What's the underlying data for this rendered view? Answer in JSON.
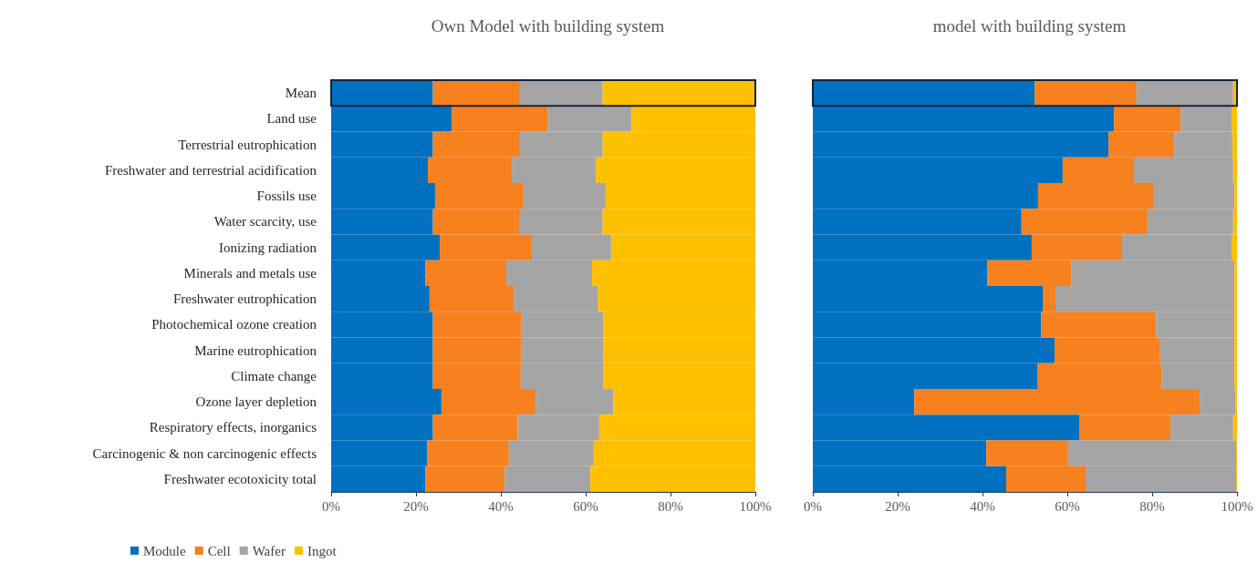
{
  "chart_data": [
    {
      "type": "bar",
      "title": "Own Model with building system",
      "orientation": "horizontal",
      "stacked": true,
      "legend": "bottom left",
      "grid": false,
      "categories": [
        "Mean",
        "Land use",
        "Terrestrial eutrophication",
        "Freshwater and terrestrial acidification",
        "Fossils use",
        "Water scarcity, use",
        "Ionizing radiation",
        "Minerals and metals use",
        "Freshwater eutrophication",
        "Photochemical ozone creation",
        "Marine eutrophication",
        "Climate change",
        "Ozone layer depletion",
        "Respiratory effects, inorganics",
        "Carcinogenic & non carcinogenic effects",
        "Freshwater ecotoxicity total"
      ],
      "xlim": [
        0,
        100
      ],
      "xticks": [
        {
          "value": 0,
          "label": "0%"
        },
        {
          "value": 20,
          "label": "20%"
        },
        {
          "value": 40,
          "label": "40%"
        },
        {
          "value": 60,
          "label": "60%"
        },
        {
          "value": 80,
          "label": "80%"
        },
        {
          "value": 100,
          "label": "100%"
        }
      ],
      "series": [
        {
          "name": "Module",
          "color": "#0070c0",
          "values": [
            24,
            28.4,
            24,
            22.8,
            24.5,
            24,
            25.6,
            22.2,
            23.2,
            24,
            24,
            24,
            26,
            24,
            22.6,
            22.2
          ]
        },
        {
          "name": "Cell",
          "color": "#f7801f",
          "values": [
            20.5,
            22.6,
            20.5,
            19.8,
            20.9,
            20.5,
            21.7,
            19.1,
            19.8,
            20.9,
            20.9,
            20.7,
            22.2,
            20,
            19.3,
            18.7
          ]
        },
        {
          "name": "Wafer",
          "color": "#a5a5a5",
          "values": [
            19.5,
            19.8,
            19.5,
            19.8,
            19.3,
            19.5,
            18.7,
            20.2,
            19.8,
            19.2,
            19.2,
            19.4,
            18.3,
            19.2,
            20,
            20.2
          ]
        },
        {
          "name": "Ingot",
          "color": "#ffc000",
          "values": [
            36,
            29.2,
            36,
            37.6,
            35.3,
            36,
            34,
            38.5,
            37.2,
            35.9,
            35.9,
            35.9,
            33.5,
            36.8,
            38.1,
            38.9
          ]
        }
      ]
    },
    {
      "type": "bar",
      "title": "model with building system",
      "orientation": "horizontal",
      "stacked": true,
      "legend": false,
      "grid": false,
      "tick_labels": "x",
      "categories": [
        null,
        null,
        null,
        null,
        null,
        null,
        null,
        null,
        null,
        null,
        null,
        null,
        null,
        null,
        null,
        null
      ],
      "xlim": [
        0,
        100
      ],
      "xticks": [
        {
          "value": 0,
          "label": "0%"
        },
        {
          "value": 20,
          "label": "20%"
        },
        {
          "value": 40,
          "label": "40%"
        },
        {
          "value": 60,
          "label": "60%"
        },
        {
          "value": 80,
          "label": "80%"
        },
        {
          "value": 100,
          "label": "100%"
        }
      ],
      "series": [
        {
          "color": "#0070c0",
          "values": [
            52.3,
            71,
            69.7,
            58.9,
            53.1,
            49.2,
            51.6,
            41.1,
            54.2,
            53.8,
            57,
            52.9,
            23.9,
            62.8,
            40.9,
            45.6
          ]
        },
        {
          "color": "#f7801f",
          "values": [
            24,
            15.7,
            15.5,
            16.8,
            27.3,
            29.7,
            21.3,
            19.8,
            3,
            27.1,
            24.9,
            29.3,
            67.3,
            21.5,
            19.3,
            18.7
          ]
        },
        {
          "color": "#a5a5a5",
          "values": [
            22.8,
            12,
            13.7,
            23.4,
            19,
            20.2,
            25.8,
            38.5,
            42.2,
            18.5,
            17.5,
            17.2,
            8.4,
            14.8,
            39.6,
            35.5
          ]
        },
        {
          "color": "#ffc000",
          "values": [
            0.9,
            1.3,
            1.1,
            0.9,
            0.6,
            0.9,
            1.3,
            0.6,
            0.6,
            0.6,
            0.6,
            0.6,
            0.4,
            0.9,
            0.2,
            0.2
          ]
        }
      ]
    }
  ]
}
